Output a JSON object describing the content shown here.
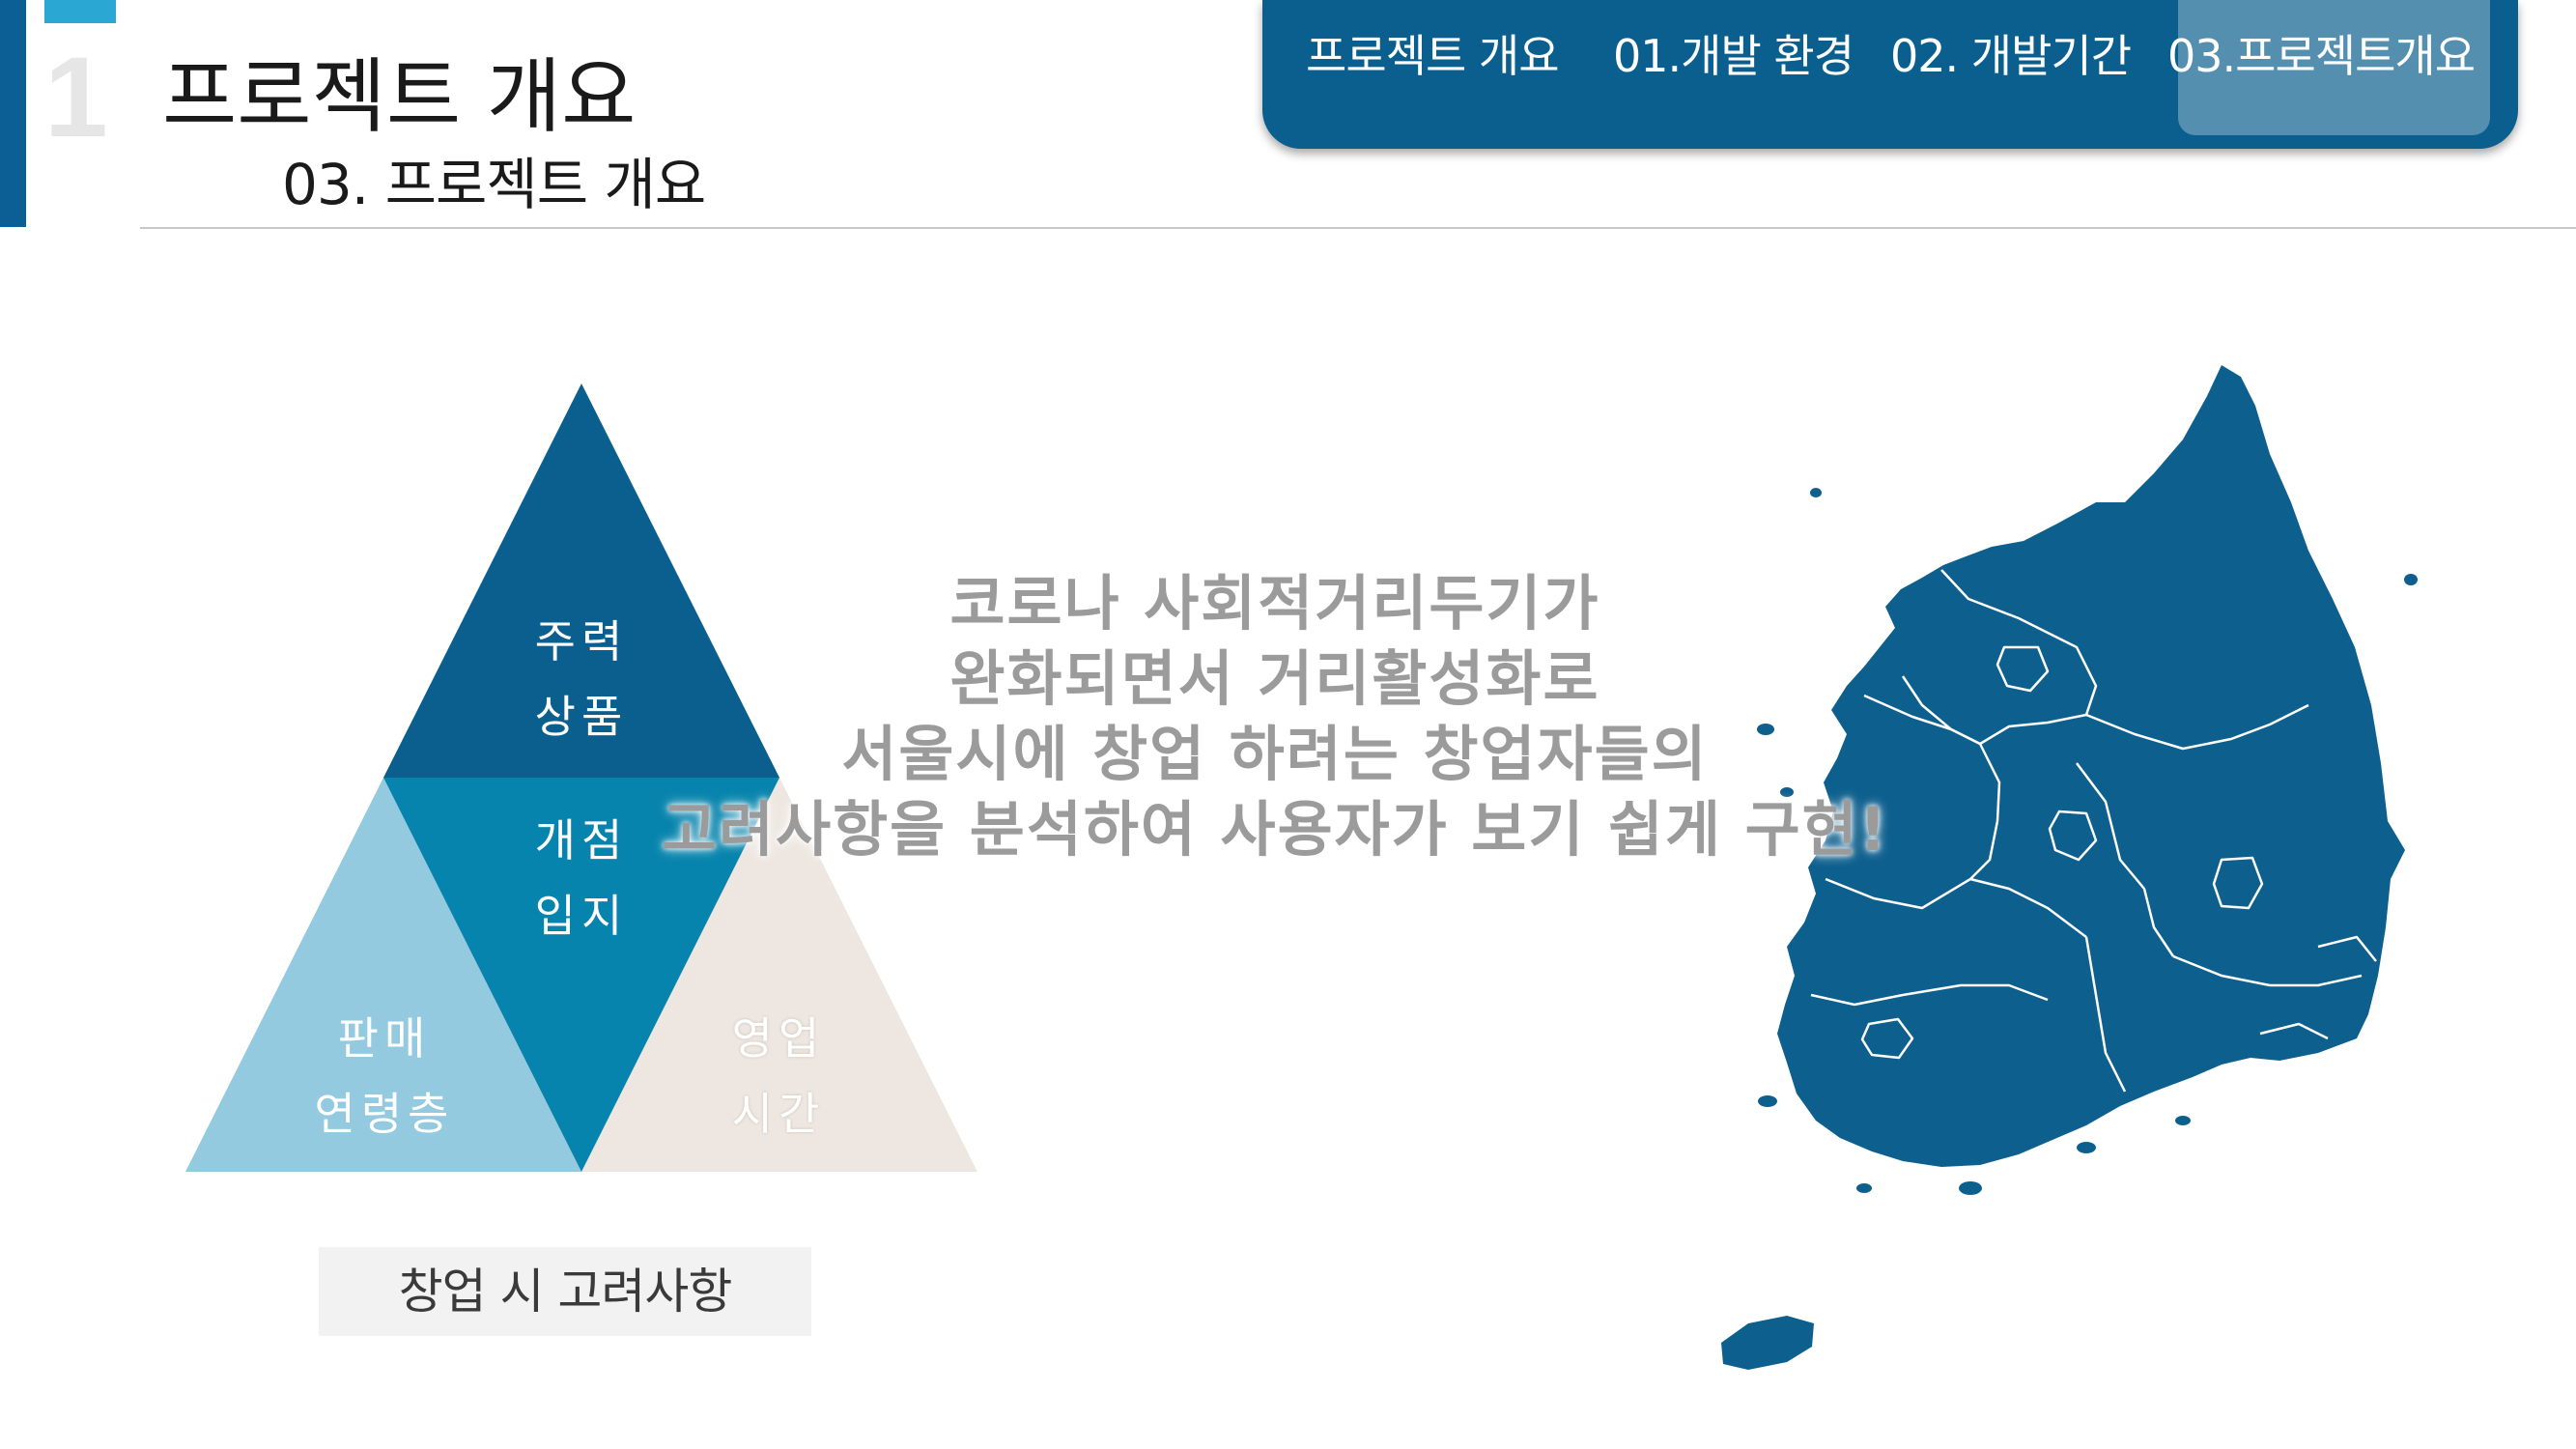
{
  "header": {
    "section_number": "1",
    "title": "프로젝트 개요",
    "subtitle": "03. 프로젝트 개요"
  },
  "nav": {
    "items": [
      {
        "label": "프로젝트 개요"
      },
      {
        "label": "01.개발 환경"
      },
      {
        "label": "02. 개발기간"
      },
      {
        "label": "03.프로젝트개요"
      }
    ],
    "active_index": 3
  },
  "diagram": {
    "top": {
      "line1": "주력",
      "line2": "상품"
    },
    "center": {
      "line1": "개점",
      "line2": "입지"
    },
    "left": {
      "line1": "판매",
      "line2": "연령층"
    },
    "right": {
      "line1": "영업",
      "line2": "시간"
    },
    "caption": "창업 시 고려사항"
  },
  "overlay": {
    "lines": [
      "코로나 사회적거리두기가",
      "완화되면서 거리활성화로",
      "서울시에 창업 하려는 창업자들의",
      "고려사항을 분석하여 사용자가 보기 쉽게 구현!"
    ]
  },
  "colors": {
    "dark_blue": "#0b5f8f",
    "mid_blue": "#0784ad",
    "light_blue": "#93cadf",
    "beige": "#eee7e1",
    "map_blue": "#0d5f8e"
  }
}
